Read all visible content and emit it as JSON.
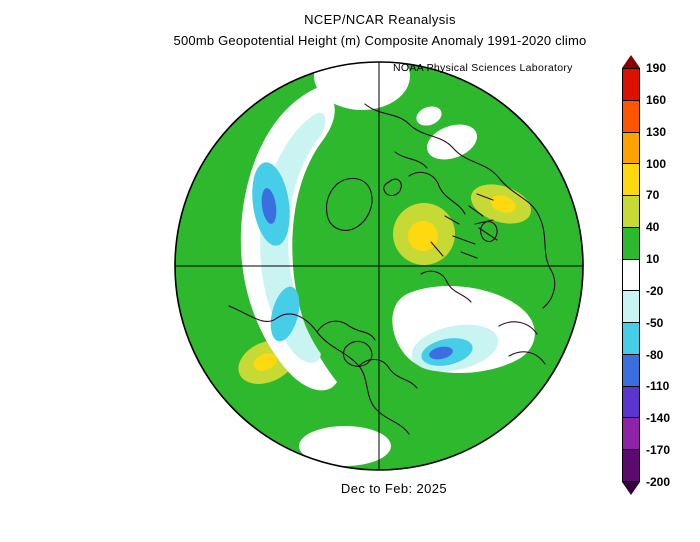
{
  "header": {
    "title": "NCEP/NCAR Reanalysis",
    "subtitle": "500mb Geopotential Height (m) Composite Anomaly 1991-2020 climo",
    "credit": "NOAA Physical Sciences Laboratory"
  },
  "caption": "Dec to Feb: 2025",
  "colorbar": {
    "ticks": [
      "190",
      "160",
      "130",
      "100",
      "70",
      "40",
      "10",
      "-20",
      "-50",
      "-80",
      "-110",
      "-140",
      "-170",
      "-200"
    ],
    "top_arrow_color": "#8b0000",
    "bottom_arrow_color": "#33003d",
    "segment_colors": [
      "#dd1100",
      "#ff5500",
      "#ffa200",
      "#ffd90f",
      "#c6d934",
      "#2eb82e",
      "#ffffff",
      "#c9f4f2",
      "#46cde8",
      "#3b6fe0",
      "#5a35cf",
      "#8f23a8",
      "#5c0a6e"
    ]
  },
  "map": {
    "colors": {
      "green": "#2eb82e",
      "white": "#ffffff",
      "pale_cyan": "#c9f4f2",
      "cyan": "#46cde8",
      "blue": "#3b6fe0",
      "yellow_green": "#c6d934",
      "yellow": "#ffd90f",
      "coastline": "#30082e",
      "grid": "#000000"
    }
  },
  "chart_data": {
    "type": "heatmap",
    "title": "NCEP/NCAR Reanalysis",
    "subtitle": "500mb Geopotential Height (m) Composite Anomaly 1991-2020 climo",
    "source": "NOAA Physical Sciences Laboratory",
    "period": "Dec to Feb: 2025",
    "variable": "500mb Geopotential Height Composite Anomaly",
    "units": "m",
    "climatology": "1991-2020",
    "projection": "Northern Hemisphere polar stereographic",
    "legend_position": "right",
    "colorbar_levels": [
      -200,
      -170,
      -140,
      -110,
      -80,
      -50,
      -20,
      10,
      40,
      70,
      100,
      130,
      160,
      190
    ],
    "features": [
      {
        "region": "North Pacific (left of map)",
        "sign": "negative",
        "anomaly_m": "-20 to -80"
      },
      {
        "region": "western North Atlantic / southeastern North America",
        "sign": "negative",
        "anomaly_m": "-20 to -60"
      },
      {
        "region": "near-pole / Greenland sector",
        "sign": "positive",
        "anomaly_m": "40 to 70"
      },
      {
        "region": "central Asia / Caspian sector",
        "sign": "positive",
        "anomaly_m": "40 to 70"
      },
      {
        "region": "most remaining mid-latitudes",
        "sign": "positive",
        "anomaly_m": "10 to 40"
      }
    ]
  }
}
